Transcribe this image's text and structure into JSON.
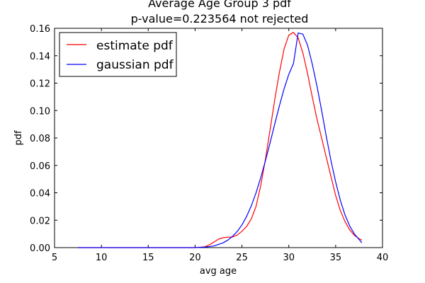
{
  "chart_data": {
    "type": "line",
    "title": "Average Age Group 3 pdf",
    "subtitle": "p-value=0.223564  not rejected",
    "xlabel": "avg age",
    "ylabel": "pdf",
    "xlim": [
      5,
      40
    ],
    "ylim": [
      0,
      0.16
    ],
    "x_ticks": [
      "5",
      "10",
      "15",
      "20",
      "25",
      "30",
      "35",
      "40"
    ],
    "y_ticks": [
      "0.00",
      "0.02",
      "0.04",
      "0.06",
      "0.08",
      "0.10",
      "0.12",
      "0.14",
      "0.16"
    ],
    "grid": false,
    "legend_position": "top-left",
    "series": [
      {
        "name": "estimate pdf",
        "color": "#ff0000",
        "x": [
          7.5,
          15,
          20,
          21,
          21.5,
          22,
          22.5,
          23,
          23.5,
          24,
          24.5,
          25,
          25.5,
          26,
          26.5,
          27,
          27.5,
          28,
          28.5,
          29,
          29.5,
          30,
          30.5,
          31,
          31.5,
          32,
          32.5,
          33,
          33.5,
          34,
          34.5,
          35,
          35.5,
          36,
          36.5,
          37,
          37.5,
          37.8
        ],
        "y": [
          0.0,
          0.0,
          0.0,
          0.0005,
          0.002,
          0.004,
          0.0062,
          0.0073,
          0.0076,
          0.0078,
          0.0092,
          0.012,
          0.0155,
          0.021,
          0.03,
          0.045,
          0.064,
          0.086,
          0.108,
          0.128,
          0.145,
          0.155,
          0.157,
          0.153,
          0.142,
          0.127,
          0.11,
          0.094,
          0.08,
          0.066,
          0.052,
          0.038,
          0.027,
          0.019,
          0.013,
          0.009,
          0.0065,
          0.0055
        ]
      },
      {
        "name": "gaussian pdf",
        "color": "#0000ff",
        "x": [
          7.5,
          15,
          20,
          21,
          22,
          23,
          23.5,
          24,
          24.5,
          25,
          25.5,
          26,
          26.5,
          27,
          27.5,
          28,
          28.5,
          29,
          29.5,
          30,
          30.5,
          31,
          31.5,
          32,
          32.5,
          33,
          33.5,
          34,
          34.5,
          35,
          35.5,
          36,
          36.5,
          37,
          37.5,
          37.8
        ],
        "y": [
          0.0,
          0.0,
          0.0,
          0.0003,
          0.0012,
          0.0035,
          0.0055,
          0.0082,
          0.0118,
          0.0166,
          0.0228,
          0.0305,
          0.0399,
          0.0509,
          0.0632,
          0.0765,
          0.0902,
          0.1036,
          0.1159,
          0.1264,
          0.1343,
          0.1566,
          0.1557,
          0.1476,
          0.134,
          0.118,
          0.1003,
          0.0813,
          0.0636,
          0.0478,
          0.0345,
          0.0238,
          0.0158,
          0.01,
          0.006,
          0.0035
        ]
      }
    ]
  }
}
